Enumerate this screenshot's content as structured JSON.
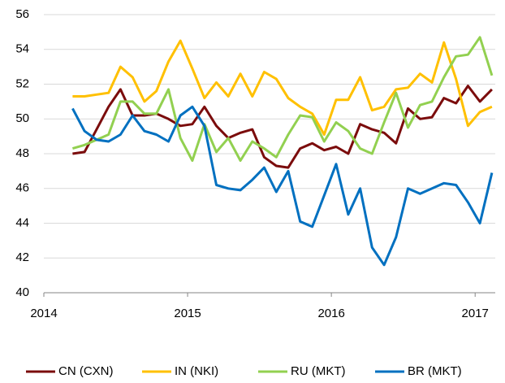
{
  "chart_data": {
    "type": "line",
    "x": [
      2014.2,
      2014.283,
      2014.367,
      2014.45,
      2014.533,
      2014.617,
      2014.7,
      2014.783,
      2014.867,
      2014.95,
      2015.033,
      2015.117,
      2015.2,
      2015.283,
      2015.367,
      2015.45,
      2015.533,
      2015.617,
      2015.7,
      2015.783,
      2015.867,
      2015.95,
      2016.033,
      2016.117,
      2016.2,
      2016.283,
      2016.367,
      2016.45,
      2016.533,
      2016.617,
      2016.7,
      2016.783,
      2016.867,
      2016.95,
      2017.033,
      2017.117
    ],
    "series": [
      {
        "name": "CN (CXN)",
        "color": "#7b0c0c",
        "values": [
          48.0,
          48.1,
          49.4,
          50.7,
          51.7,
          50.2,
          50.2,
          50.3,
          50.0,
          49.6,
          49.7,
          50.7,
          49.6,
          48.9,
          49.2,
          49.4,
          47.8,
          47.3,
          47.2,
          48.3,
          48.6,
          48.2,
          48.4,
          48.0,
          49.7,
          49.4,
          49.2,
          48.6,
          50.6,
          50.0,
          50.1,
          51.2,
          50.9,
          51.9,
          51.0,
          51.7
        ]
      },
      {
        "name": "IN (NKI)",
        "color": "#ffc000",
        "values": [
          51.3,
          51.3,
          51.4,
          51.5,
          53.0,
          52.4,
          51.0,
          51.6,
          53.3,
          54.5,
          52.9,
          51.2,
          52.1,
          51.3,
          52.6,
          51.3,
          52.7,
          52.3,
          51.2,
          50.7,
          50.3,
          49.1,
          51.1,
          51.1,
          52.4,
          50.5,
          50.7,
          51.7,
          51.8,
          52.6,
          52.1,
          54.4,
          52.3,
          49.6,
          50.4,
          50.7
        ]
      },
      {
        "name": "RU (MKT)",
        "color": "#92d050",
        "values": [
          48.3,
          48.5,
          48.8,
          49.1,
          51.0,
          51.0,
          50.3,
          50.3,
          51.7,
          48.9,
          47.6,
          49.7,
          48.1,
          48.9,
          47.6,
          48.7,
          48.3,
          47.8,
          49.1,
          50.2,
          50.1,
          48.7,
          49.8,
          49.3,
          48.3,
          48.0,
          49.8,
          51.5,
          49.5,
          50.8,
          51.0,
          52.4,
          53.6,
          53.7,
          54.7,
          52.5
        ]
      },
      {
        "name": "BR (MKT)",
        "color": "#0070c0",
        "values": [
          50.6,
          49.3,
          48.8,
          48.7,
          49.1,
          50.2,
          49.3,
          49.1,
          48.7,
          50.2,
          50.7,
          49.6,
          46.2,
          46.0,
          45.9,
          46.5,
          47.2,
          45.8,
          47.0,
          44.1,
          43.8,
          45.6,
          47.4,
          44.5,
          46.0,
          42.6,
          41.6,
          43.2,
          46.0,
          45.7,
          46.0,
          46.3,
          46.2,
          45.2,
          44.0,
          46.9
        ]
      }
    ],
    "xlim": [
      2014,
      2017.14
    ],
    "xticks": [
      2014,
      2015,
      2016,
      2017
    ],
    "ylim": [
      40,
      56
    ],
    "yticks": [
      40,
      42,
      44,
      46,
      48,
      50,
      52,
      54,
      56
    ],
    "grid": true,
    "legend": "bottom"
  }
}
